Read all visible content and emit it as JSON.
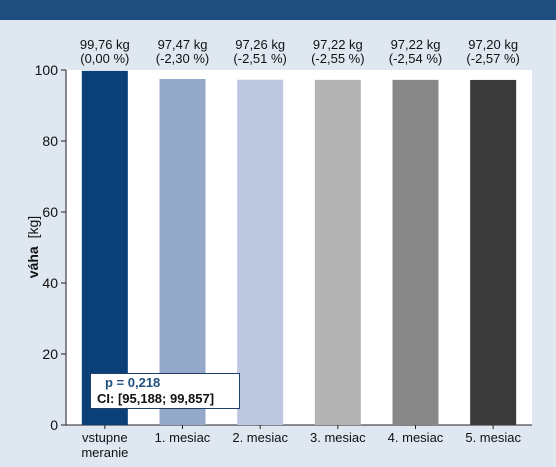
{
  "chart_data": {
    "type": "bar",
    "categories": [
      [
        "vstupne",
        "meranie"
      ],
      [
        "1. mesiac"
      ],
      [
        "2. mesiac"
      ],
      [
        "3. mesiac"
      ],
      [
        "4. mesiac"
      ],
      [
        "5. mesiac"
      ]
    ],
    "values": [
      99.76,
      97.47,
      97.26,
      97.22,
      97.22,
      97.2
    ],
    "value_labels": [
      "99,76 kg",
      "97,47 kg",
      "97,26 kg",
      "97,22 kg",
      "97,22 kg",
      "97,20 kg"
    ],
    "change_labels": [
      "(0,00 %)",
      "(-2,30 %)",
      "(-2,51 %)",
      "(-2,55 %)",
      "(-2,54 %)",
      "(-2,57 %)"
    ],
    "bar_colors": [
      "#0a3f78",
      "#94a9c9",
      "#bec7e0",
      "#b3b3b3",
      "#878787",
      "#3a3a3a"
    ],
    "ylabel_bold": "váha",
    "ylabel_unit": "[kg]",
    "ylim": [
      0,
      100
    ],
    "yticks": [
      0,
      20,
      40,
      60,
      80,
      100
    ],
    "grid": false,
    "stats": {
      "p": "p = 0,218",
      "ci": "CI: [95,188; 99,857]"
    },
    "colors": {
      "header": "#1f4e7e",
      "background": "#dfe7f1",
      "plot_background": "#ffffff"
    }
  }
}
